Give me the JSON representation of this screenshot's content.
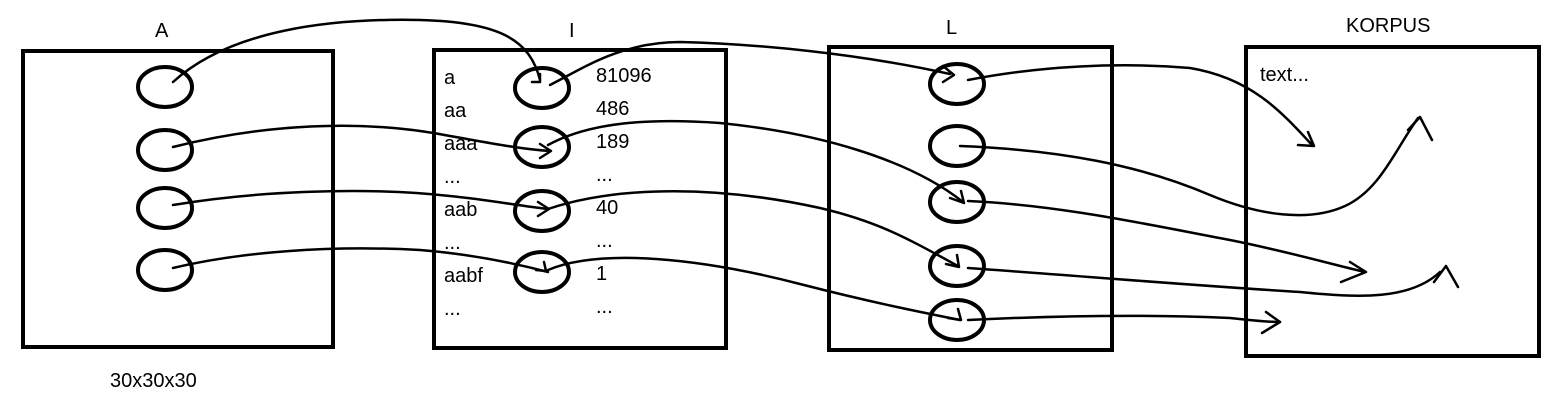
{
  "boxes": {
    "a": {
      "title": "A",
      "caption": "30x30x30"
    },
    "i": {
      "title": "I",
      "rows": [
        {
          "word": "a",
          "count": "81096"
        },
        {
          "word": "aa",
          "count": "486"
        },
        {
          "word": "aaa",
          "count": "189"
        },
        {
          "word": "...",
          "count": "..."
        },
        {
          "word": "aab",
          "count": "40"
        },
        {
          "word": "...",
          "count": "..."
        },
        {
          "word": "aabf",
          "count": "1"
        },
        {
          "word": "...",
          "count": "..."
        }
      ]
    },
    "l": {
      "title": "L"
    },
    "korpus": {
      "title": "KORPUS",
      "text": "text..."
    }
  }
}
